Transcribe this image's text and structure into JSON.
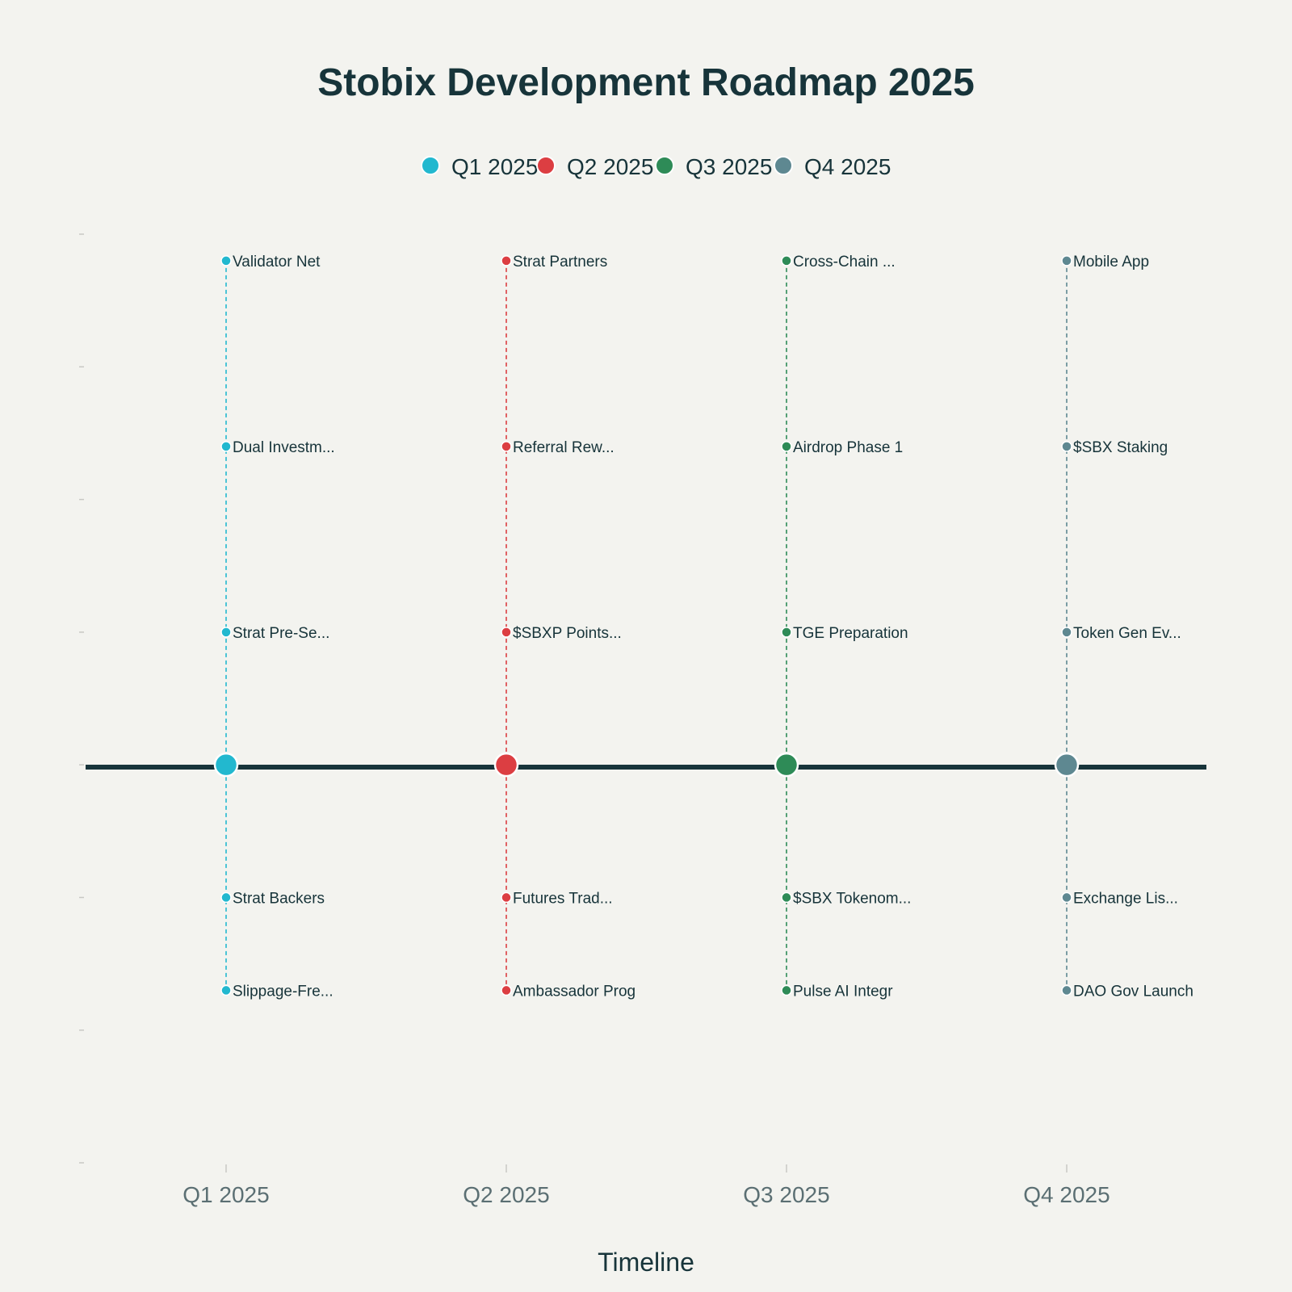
{
  "chart_data": {
    "type": "scatter",
    "title": "Stobix Development Roadmap 2025",
    "xlabel": "Timeline",
    "ylabel": "",
    "ylim": [
      -3,
      4
    ],
    "grid": false,
    "legend_position": "top-center",
    "categories": [
      "Q1 2025",
      "Q2 2025",
      "Q3 2025",
      "Q4 2025"
    ],
    "legend": [
      {
        "label": "Q1 2025",
        "color": "#22b8cf"
      },
      {
        "label": "Q2 2025",
        "color": "#dc3e42"
      },
      {
        "label": "Q3 2025",
        "color": "#2e8b57"
      },
      {
        "label": "Q4 2025",
        "color": "#5e8891"
      }
    ],
    "series": [
      {
        "name": "Q1 2025",
        "color": "#22b8cf",
        "items": [
          {
            "label": "Validator Net",
            "y": 3.8
          },
          {
            "label": "Dual Investm...",
            "y": 2.4
          },
          {
            "label": "Strat Pre-Se...",
            "y": 1.0
          },
          {
            "label": "Strat Backers",
            "y": -1.0
          },
          {
            "label": "Slippage-Fre...",
            "y": -1.7
          }
        ]
      },
      {
        "name": "Q2 2025",
        "color": "#dc3e42",
        "items": [
          {
            "label": "Strat Partners",
            "y": 3.8
          },
          {
            "label": "Referral Rew...",
            "y": 2.4
          },
          {
            "label": "$SBXP Points...",
            "y": 1.0
          },
          {
            "label": "Futures Trad...",
            "y": -1.0
          },
          {
            "label": "Ambassador Prog",
            "y": -1.7
          }
        ]
      },
      {
        "name": "Q3 2025",
        "color": "#2e8b57",
        "items": [
          {
            "label": "Cross-Chain ...",
            "y": 3.8
          },
          {
            "label": "Airdrop Phase 1",
            "y": 2.4
          },
          {
            "label": "TGE Preparation",
            "y": 1.0
          },
          {
            "label": "$SBX Tokenom...",
            "y": -1.0
          },
          {
            "label": "Pulse AI Integr",
            "y": -1.7
          }
        ]
      },
      {
        "name": "Q4 2025",
        "color": "#5e8891",
        "items": [
          {
            "label": "Mobile App",
            "y": 3.8
          },
          {
            "label": "$SBX Staking",
            "y": 2.4
          },
          {
            "label": "Token Gen Ev...",
            "y": 1.0
          },
          {
            "label": "Exchange Lis...",
            "y": -1.0
          },
          {
            "label": "DAO Gov Launch",
            "y": -1.7
          }
        ]
      }
    ]
  }
}
